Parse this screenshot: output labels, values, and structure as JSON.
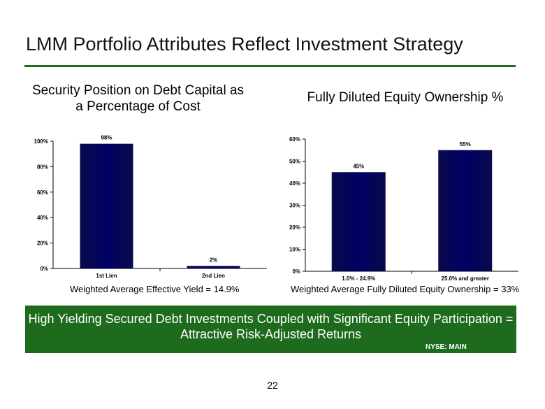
{
  "slide": {
    "title": "LMM Portfolio Attributes Reflect Investment Strategy",
    "banner_text": "High Yielding Secured Debt Investments Coupled with Significant Equity Participation = Attractive Risk-Adjusted Returns",
    "ticker": "NYSE:  MAIN",
    "page_number": "22",
    "accent_color": "#1e6b1e"
  },
  "chart_data": [
    {
      "type": "bar",
      "title": "Security Position on Debt Capital as a Percentage of Cost",
      "categories": [
        "1st Lien",
        "2nd Lien"
      ],
      "values": [
        98,
        2
      ],
      "data_labels": [
        "98%",
        "2%"
      ],
      "ylim": [
        0,
        100
      ],
      "yticks": [
        "0%",
        "20%",
        "40%",
        "60%",
        "80%",
        "100%"
      ],
      "grid": false,
      "bar_color": "#000066",
      "note": "Weighted Average Effective Yield = 14.9%"
    },
    {
      "type": "bar",
      "title": "Fully Diluted Equity Ownership %",
      "categories": [
        "1.0% - 24.9%",
        "25.0% and greater"
      ],
      "values": [
        45,
        55
      ],
      "data_labels": [
        "45%",
        "55%"
      ],
      "ylim": [
        0,
        60
      ],
      "yticks": [
        "0%",
        "10%",
        "20%",
        "30%",
        "40%",
        "50%",
        "60%"
      ],
      "grid": false,
      "bar_color": "#000066",
      "note": "Weighted Average Fully Diluted Equity Ownership = 33%"
    }
  ]
}
